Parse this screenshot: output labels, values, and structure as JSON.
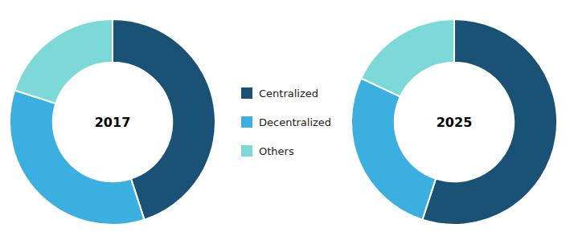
{
  "chart_data": {
    "type": "donut",
    "categories": [
      "Centralized",
      "Decentralized",
      "Others"
    ],
    "colors": [
      "#1a5276",
      "#3aafe0",
      "#7dd8d8"
    ],
    "series": [
      {
        "name": "2017",
        "values": [
          45,
          35,
          20
        ]
      },
      {
        "name": "2025",
        "values": [
          55,
          27,
          18
        ]
      }
    ],
    "legend": "center"
  }
}
